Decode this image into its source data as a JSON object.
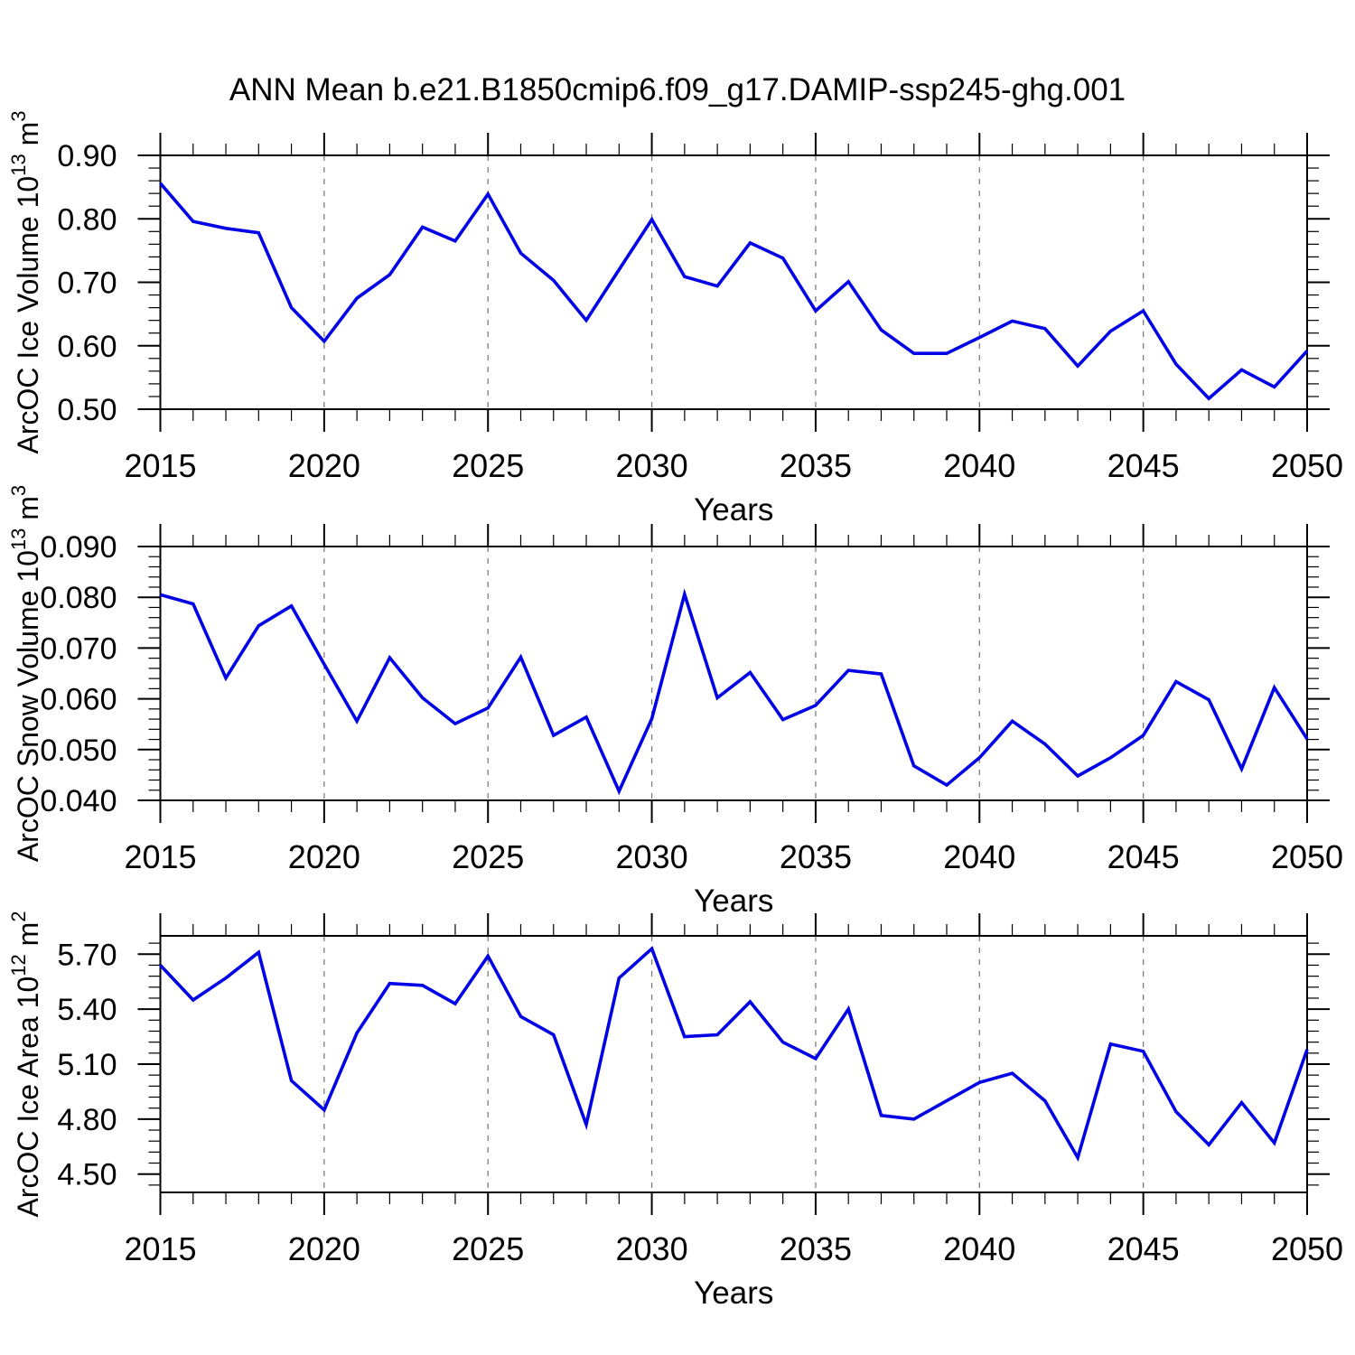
{
  "title": "ANN Mean b.e21.B1850cmip6.f09_g17.DAMIP-ssp245-ghg.001",
  "xlabel": "Years",
  "colors": {
    "line": "#0000e6",
    "grid": "#7d7d7d",
    "axis": "#000000",
    "text": "#000000",
    "background": "#ffffff"
  },
  "years": [
    2015,
    2016,
    2017,
    2018,
    2019,
    2020,
    2021,
    2022,
    2023,
    2024,
    2025,
    2026,
    2027,
    2028,
    2029,
    2030,
    2031,
    2032,
    2033,
    2034,
    2035,
    2036,
    2037,
    2038,
    2039,
    2040,
    2041,
    2042,
    2043,
    2044,
    2045,
    2046,
    2047,
    2048,
    2049,
    2050
  ],
  "x_major_ticks": [
    2015,
    2020,
    2025,
    2030,
    2035,
    2040,
    2045,
    2050
  ],
  "grid_years": [
    2020,
    2025,
    2030,
    2035,
    2040,
    2045
  ],
  "chart_data": [
    {
      "type": "line",
      "name": "ice-volume",
      "ylabel_text": "ArcOC Ice Volume 10^13 m^3",
      "ylabel": {
        "prefix": "ArcOC Ice Volume 10",
        "exp": "13",
        "unit": " m",
        "unit_exp": "3"
      },
      "xlabel": "Years",
      "ylim": [
        0.5,
        0.9
      ],
      "y_minor_step": 0.02,
      "yticks": [
        {
          "v": 0.5,
          "label": "0.50"
        },
        {
          "v": 0.6,
          "label": "0.60"
        },
        {
          "v": 0.7,
          "label": "0.70"
        },
        {
          "v": 0.8,
          "label": "0.80"
        },
        {
          "v": 0.9,
          "label": "0.90"
        }
      ],
      "values": [
        0.856,
        0.796,
        0.785,
        0.778,
        0.66,
        0.607,
        0.675,
        0.712,
        0.787,
        0.765,
        0.839,
        0.746,
        0.703,
        0.64,
        0.72,
        0.799,
        0.709,
        0.694,
        0.762,
        0.738,
        0.655,
        0.701,
        0.625,
        0.588,
        0.588,
        0.613,
        0.639,
        0.627,
        0.568,
        0.623,
        0.655,
        0.571,
        0.517,
        0.562,
        0.535,
        0.592
      ]
    },
    {
      "type": "line",
      "name": "snow-volume",
      "ylabel_text": "ArcOC Snow Volume 10^13 m^3",
      "ylabel": {
        "prefix": "ArcOC Snow Volume 10",
        "exp": "13",
        "unit": " m",
        "unit_exp": "3"
      },
      "xlabel": "Years",
      "ylim": [
        0.04,
        0.09
      ],
      "y_minor_step": 0.002,
      "yticks": [
        {
          "v": 0.04,
          "label": "0.040"
        },
        {
          "v": 0.05,
          "label": "0.050"
        },
        {
          "v": 0.06,
          "label": "0.060"
        },
        {
          "v": 0.07,
          "label": "0.070"
        },
        {
          "v": 0.08,
          "label": "0.080"
        },
        {
          "v": 0.09,
          "label": "0.090"
        }
      ],
      "values": [
        0.0805,
        0.0787,
        0.0641,
        0.0744,
        0.0783,
        0.0668,
        0.0556,
        0.0681,
        0.0602,
        0.0551,
        0.0582,
        0.0682,
        0.0528,
        0.0564,
        0.0418,
        0.0561,
        0.0806,
        0.0602,
        0.0652,
        0.0559,
        0.0587,
        0.0656,
        0.0649,
        0.0468,
        0.043,
        0.0484,
        0.0556,
        0.0511,
        0.0448,
        0.0484,
        0.0528,
        0.0634,
        0.0598,
        0.0462,
        0.0622,
        0.0521
      ]
    },
    {
      "type": "line",
      "name": "ice-area",
      "ylabel_text": "ArcOC Ice Area 10^12 m^2",
      "ylabel": {
        "prefix": "ArcOC Ice Area 10",
        "exp": "12",
        "unit": " m",
        "unit_exp": "2"
      },
      "xlabel": "Years",
      "ylim": [
        4.4,
        5.8
      ],
      "y_minor_step": 0.06,
      "yticks": [
        {
          "v": 4.5,
          "label": "4.50"
        },
        {
          "v": 4.8,
          "label": "4.80"
        },
        {
          "v": 5.1,
          "label": "5.10"
        },
        {
          "v": 5.4,
          "label": "5.40"
        },
        {
          "v": 5.7,
          "label": "5.70"
        }
      ],
      "values": [
        5.64,
        5.45,
        5.57,
        5.71,
        5.01,
        4.85,
        5.27,
        5.54,
        5.53,
        5.43,
        5.69,
        5.36,
        5.26,
        4.77,
        5.57,
        5.73,
        5.25,
        5.26,
        5.44,
        5.22,
        5.13,
        5.4,
        4.82,
        4.8,
        4.9,
        5.0,
        5.05,
        4.9,
        4.59,
        5.21,
        5.17,
        4.84,
        4.66,
        4.89,
        4.67,
        5.18
      ]
    }
  ]
}
